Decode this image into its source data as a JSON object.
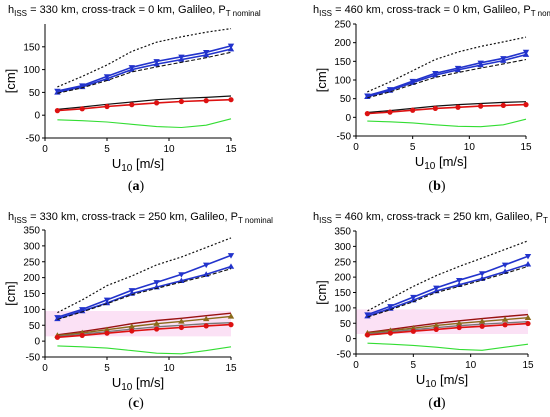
{
  "colors": {
    "blue": "#2233cc",
    "red": "#dd1111",
    "green": "#33dd33",
    "black": "#111111",
    "gray": "#777777",
    "brown": "#8a6a1a",
    "darkred": "#991111",
    "magenta_band": "#f7c8ec"
  },
  "chart_data": [
    {
      "type": "line",
      "title_main": "h",
      "title_sub": "ISS",
      "title_rest": " = 330 km, cross-track = 0 km, Galileo, P",
      "title_sub2": "T nominal",
      "caption": "(a)",
      "xlabel_main": "U",
      "xlabel_sub": "10",
      "xlabel_rest": " [m/s]",
      "ylabel": "[cm]",
      "xlim": [
        0,
        15
      ],
      "ylim": [
        -50,
        200
      ],
      "xticks": [
        "0",
        "5",
        "10",
        "15"
      ],
      "yticks": [
        "-50",
        "0",
        "50",
        "100",
        "150"
      ],
      "grid": false,
      "band": null,
      "series": [
        {
          "style": "black-dotted",
          "x": [
            1,
            3,
            5,
            7,
            9,
            11,
            13,
            15
          ],
          "y": [
            62,
            85,
            110,
            140,
            160,
            172,
            182,
            190
          ]
        },
        {
          "style": "blue-down",
          "x": [
            1,
            3,
            5,
            7,
            9,
            11,
            13,
            15
          ],
          "y": [
            53,
            65,
            85,
            105,
            118,
            128,
            138,
            152
          ]
        },
        {
          "style": "blue-up",
          "x": [
            1,
            3,
            5,
            7,
            9,
            11,
            13,
            15
          ],
          "y": [
            50,
            62,
            80,
            100,
            112,
            122,
            132,
            145
          ]
        },
        {
          "style": "black-dashed",
          "x": [
            1,
            3,
            5,
            7,
            9,
            11,
            13,
            15
          ],
          "y": [
            48,
            60,
            76,
            95,
            106,
            116,
            126,
            138
          ]
        },
        {
          "style": "black-solid",
          "x": [
            1,
            3,
            5,
            7,
            9,
            11,
            13,
            15
          ],
          "y": [
            13,
            18,
            24,
            29,
            34,
            37,
            39,
            42
          ]
        },
        {
          "style": "red-dot",
          "x": [
            1,
            3,
            5,
            7,
            9,
            11,
            13,
            15
          ],
          "y": [
            10,
            14,
            19,
            23,
            27,
            30,
            32,
            34
          ]
        },
        {
          "style": "green-solid",
          "x": [
            1,
            3,
            5,
            7,
            9,
            11,
            13,
            15
          ],
          "y": [
            -10,
            -12,
            -15,
            -20,
            -25,
            -27,
            -22,
            -8
          ]
        }
      ]
    },
    {
      "type": "line",
      "title_main": "h",
      "title_sub": "ISS",
      "title_rest": " = 460 km, cross-track = 0 km, Galileo, P",
      "title_sub2": "T nominal",
      "caption": "(b)",
      "xlabel_main": "U",
      "xlabel_sub": "10",
      "xlabel_rest": " [m/s]",
      "ylabel": "[cm]",
      "xlim": [
        0,
        15
      ],
      "ylim": [
        -50,
        250
      ],
      "xticks": [
        "0",
        "5",
        "10",
        "15"
      ],
      "yticks": [
        "-50",
        "0",
        "50",
        "100",
        "150",
        "200",
        "250"
      ],
      "grid": false,
      "band": null,
      "series": [
        {
          "style": "black-dotted",
          "x": [
            1,
            3,
            5,
            7,
            9,
            11,
            13,
            15
          ],
          "y": [
            68,
            95,
            125,
            155,
            175,
            190,
            202,
            215
          ]
        },
        {
          "style": "blue-down",
          "x": [
            1,
            3,
            5,
            7,
            9,
            11,
            13,
            15
          ],
          "y": [
            58,
            75,
            97,
            118,
            132,
            146,
            158,
            175
          ]
        },
        {
          "style": "blue-up",
          "x": [
            1,
            3,
            5,
            7,
            9,
            11,
            13,
            15
          ],
          "y": [
            55,
            72,
            93,
            113,
            127,
            140,
            152,
            168
          ]
        },
        {
          "style": "black-dashed",
          "x": [
            1,
            3,
            5,
            7,
            9,
            11,
            13,
            15
          ],
          "y": [
            52,
            68,
            88,
            107,
            120,
            132,
            143,
            155
          ]
        },
        {
          "style": "black-solid",
          "x": [
            1,
            3,
            5,
            7,
            9,
            11,
            13,
            15
          ],
          "y": [
            13,
            18,
            24,
            30,
            34,
            37,
            40,
            42
          ]
        },
        {
          "style": "red-dot",
          "x": [
            1,
            3,
            5,
            7,
            9,
            11,
            13,
            15
          ],
          "y": [
            10,
            14,
            19,
            24,
            27,
            30,
            32,
            34
          ]
        },
        {
          "style": "green-solid",
          "x": [
            1,
            3,
            5,
            7,
            9,
            11,
            13,
            15
          ],
          "y": [
            -10,
            -12,
            -15,
            -20,
            -24,
            -25,
            -20,
            -5
          ]
        }
      ]
    },
    {
      "type": "line",
      "title_main": "h",
      "title_sub": "ISS",
      "title_rest": " = 330 km, cross-track = 250 km, Galileo, P",
      "title_sub2": "T nominal",
      "caption": "(c)",
      "xlabel_main": "U",
      "xlabel_sub": "10",
      "xlabel_rest": " [m/s]",
      "ylabel": "[cm]",
      "xlim": [
        0,
        15
      ],
      "ylim": [
        -50,
        350
      ],
      "xticks": [
        "0",
        "5",
        "10",
        "15"
      ],
      "yticks": [
        "-50",
        "0",
        "50",
        "100",
        "150",
        "200",
        "250",
        "300",
        "350"
      ],
      "grid": false,
      "band": [
        15,
        95
      ],
      "series": [
        {
          "style": "black-dotted",
          "x": [
            1,
            3,
            5,
            7,
            9,
            11,
            13,
            15
          ],
          "y": [
            90,
            130,
            175,
            205,
            240,
            265,
            295,
            325
          ]
        },
        {
          "style": "blue-down",
          "x": [
            1,
            3,
            5,
            7,
            9,
            11,
            13,
            15
          ],
          "y": [
            75,
            100,
            130,
            160,
            185,
            210,
            240,
            270
          ]
        },
        {
          "style": "blue-up",
          "x": [
            1,
            3,
            5,
            7,
            9,
            11,
            13,
            15
          ],
          "y": [
            70,
            95,
            120,
            150,
            170,
            190,
            210,
            235
          ]
        },
        {
          "style": "black-dashed",
          "x": [
            1,
            3,
            5,
            7,
            9,
            11,
            13,
            15
          ],
          "y": [
            68,
            92,
            118,
            146,
            166,
            186,
            205,
            228
          ]
        },
        {
          "style": "darkred-solid",
          "x": [
            1,
            3,
            5,
            7,
            9,
            11,
            13,
            15
          ],
          "y": [
            20,
            30,
            42,
            55,
            65,
            72,
            80,
            88
          ]
        },
        {
          "style": "brown-up",
          "x": [
            1,
            3,
            5,
            7,
            9,
            11,
            13,
            15
          ],
          "y": [
            18,
            26,
            36,
            46,
            55,
            62,
            70,
            78
          ]
        },
        {
          "style": "gray-solid",
          "x": [
            1,
            3,
            5,
            7,
            9,
            11,
            13,
            15
          ],
          "y": [
            15,
            22,
            30,
            38,
            45,
            50,
            55,
            58
          ]
        },
        {
          "style": "red-dot",
          "x": [
            1,
            3,
            5,
            7,
            9,
            11,
            13,
            15
          ],
          "y": [
            12,
            18,
            25,
            32,
            38,
            43,
            48,
            52
          ]
        },
        {
          "style": "green-solid",
          "x": [
            1,
            3,
            5,
            7,
            9,
            11,
            13,
            15
          ],
          "y": [
            -15,
            -18,
            -22,
            -30,
            -38,
            -40,
            -30,
            -18
          ]
        }
      ]
    },
    {
      "type": "line",
      "title_main": "h",
      "title_sub": "ISS",
      "title_rest": " = 460 km, cross-track = 250 km, Galileo, P",
      "title_sub2": "T nominal",
      "caption": "(d)",
      "xlabel_main": "U",
      "xlabel_sub": "10",
      "xlabel_rest": " [m/s]",
      "ylabel": "[cm]",
      "xlim": [
        0,
        15
      ],
      "ylim": [
        -50,
        350
      ],
      "xticks": [
        "0",
        "5",
        "10",
        "15"
      ],
      "yticks": [
        "-50",
        "0",
        "50",
        "100",
        "150",
        "200",
        "250",
        "300",
        "350"
      ],
      "grid": false,
      "band": [
        15,
        95
      ],
      "series": [
        {
          "style": "black-dotted",
          "x": [
            1,
            3,
            5,
            7,
            9,
            11,
            13,
            15
          ],
          "y": [
            90,
            130,
            170,
            205,
            235,
            262,
            290,
            318
          ]
        },
        {
          "style": "blue-down",
          "x": [
            1,
            3,
            5,
            7,
            9,
            11,
            13,
            15
          ],
          "y": [
            78,
            105,
            135,
            165,
            190,
            212,
            240,
            268
          ]
        },
        {
          "style": "blue-up",
          "x": [
            1,
            3,
            5,
            7,
            9,
            11,
            13,
            15
          ],
          "y": [
            73,
            98,
            125,
            155,
            175,
            195,
            218,
            242
          ]
        },
        {
          "style": "black-dashed",
          "x": [
            1,
            3,
            5,
            7,
            9,
            11,
            13,
            15
          ],
          "y": [
            70,
            94,
            120,
            150,
            170,
            190,
            212,
            235
          ]
        },
        {
          "style": "darkred-solid",
          "x": [
            1,
            3,
            5,
            7,
            9,
            11,
            13,
            15
          ],
          "y": [
            20,
            30,
            40,
            50,
            58,
            65,
            72,
            78
          ]
        },
        {
          "style": "brown-up",
          "x": [
            1,
            3,
            5,
            7,
            9,
            11,
            13,
            15
          ],
          "y": [
            18,
            26,
            34,
            43,
            50,
            56,
            62,
            68
          ]
        },
        {
          "style": "gray-solid",
          "x": [
            1,
            3,
            5,
            7,
            9,
            11,
            13,
            15
          ],
          "y": [
            15,
            22,
            29,
            36,
            42,
            47,
            51,
            55
          ]
        },
        {
          "style": "red-dot",
          "x": [
            1,
            3,
            5,
            7,
            9,
            11,
            13,
            15
          ],
          "y": [
            12,
            18,
            24,
            30,
            36,
            40,
            45,
            49
          ]
        },
        {
          "style": "green-solid",
          "x": [
            1,
            3,
            5,
            7,
            9,
            11,
            13,
            15
          ],
          "y": [
            -15,
            -18,
            -22,
            -28,
            -35,
            -38,
            -28,
            -18
          ]
        }
      ]
    }
  ]
}
